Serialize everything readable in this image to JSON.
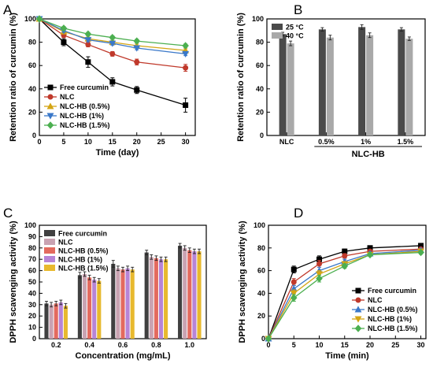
{
  "chart_data": [
    {
      "panel": "A",
      "type": "line",
      "xlabel": "Time (day)",
      "ylabel": "Retention ratio of curcumin (%)",
      "xlim": [
        0,
        32
      ],
      "ylim": [
        0,
        100
      ],
      "xticks": [
        0,
        5,
        10,
        15,
        20,
        25,
        30
      ],
      "yticks": [
        0,
        20,
        40,
        60,
        80,
        100
      ],
      "x": [
        0,
        5,
        10,
        15,
        20,
        30
      ],
      "legend_position": "bottom-left",
      "series": [
        {
          "name": "Free curcumin",
          "color": "#000000",
          "marker": "square",
          "values": [
            100,
            80,
            63,
            46,
            39,
            26
          ],
          "errors": [
            0,
            3,
            4.5,
            3.5,
            3,
            6
          ]
        },
        {
          "name": "NLC",
          "color": "#c0392b",
          "marker": "circle",
          "values": [
            100,
            86,
            78,
            70,
            63,
            58
          ],
          "errors": [
            0,
            2,
            2,
            2,
            2.5,
            3
          ]
        },
        {
          "name": "NLC-HB (0.5%)",
          "color": "#d4a514",
          "marker": "triangle-up",
          "values": [
            100,
            89,
            83,
            80,
            77,
            73
          ],
          "errors": [
            0,
            1.5,
            1.5,
            1.5,
            1.5,
            1.5
          ]
        },
        {
          "name": "NLC-HB (1%)",
          "color": "#3a78c9",
          "marker": "triangle-down",
          "values": [
            100,
            90,
            82,
            79,
            75,
            70
          ],
          "errors": [
            0,
            1.5,
            1.5,
            1.5,
            1.5,
            1.5
          ]
        },
        {
          "name": "NLC-HB (1.5%)",
          "color": "#4caf50",
          "marker": "diamond",
          "values": [
            100,
            92,
            87,
            84,
            81,
            77
          ],
          "errors": [
            0,
            1.5,
            1.5,
            1.5,
            1.5,
            1.5
          ]
        }
      ]
    },
    {
      "panel": "B",
      "type": "bar",
      "xlabel": "NLC-HB",
      "ylabel": "Retention ratio of curcumin (%)",
      "ylim": [
        0,
        100
      ],
      "yticks": [
        0,
        20,
        40,
        60,
        80,
        100
      ],
      "categories": [
        "NLC",
        "0.5%",
        "1%",
        "1.5%"
      ],
      "legend_position": "top-left",
      "series": [
        {
          "name": "25 °C",
          "color": "#4a4a4a",
          "values": [
            87,
            91,
            93,
            91
          ],
          "errors": [
            1.5,
            1.5,
            2,
            1.5
          ]
        },
        {
          "name": "40 °C",
          "color": "#a9a9a9",
          "values": [
            79,
            84,
            86,
            83
          ],
          "errors": [
            2,
            2,
            2,
            1.5
          ]
        }
      ]
    },
    {
      "panel": "C",
      "type": "bar",
      "xlabel": "Concentration (mg/mL)",
      "ylabel": "DPPH scavenging activity (%)",
      "ylim": [
        0,
        100
      ],
      "yticks": [
        0,
        10,
        20,
        30,
        40,
        50,
        60,
        70,
        80,
        90,
        100
      ],
      "categories": [
        "0.2",
        "0.4",
        "0.6",
        "0.8",
        "1.0"
      ],
      "legend_position": "top-left",
      "series": [
        {
          "name": "Free curcumin",
          "color": "#404040",
          "values": [
            31,
            56,
            66,
            76,
            82
          ],
          "errors": [
            2,
            2.5,
            3,
            2,
            2
          ]
        },
        {
          "name": "NLC",
          "color": "#c9a3b2",
          "values": [
            30,
            57,
            62,
            72,
            80
          ],
          "errors": [
            2,
            2,
            2,
            2,
            2
          ]
        },
        {
          "name": "NLC-HB (0.5%)",
          "color": "#e36a5e",
          "values": [
            31,
            54,
            61,
            71,
            78
          ],
          "errors": [
            2,
            2,
            2,
            2,
            2
          ]
        },
        {
          "name": "NLC-HB (1%)",
          "color": "#b784d6",
          "values": [
            32,
            52,
            62,
            70,
            77
          ],
          "errors": [
            2,
            2,
            2,
            2,
            2
          ]
        },
        {
          "name": "NLC-HB (1.5%)",
          "color": "#e8b92e",
          "values": [
            29,
            51,
            61,
            70,
            77
          ],
          "errors": [
            2,
            2,
            2,
            2,
            2
          ]
        }
      ],
      "extra_bar_colors_note": ""
    },
    {
      "panel": "D",
      "type": "line",
      "xlabel": "Time (min)",
      "ylabel": "DPPH scavenging activity (%)",
      "xlim": [
        0,
        31
      ],
      "ylim": [
        0,
        100
      ],
      "xticks": [
        0,
        5,
        10,
        15,
        20,
        25,
        30
      ],
      "yticks": [
        0,
        20,
        40,
        60,
        80,
        100
      ],
      "x": [
        0,
        5,
        10,
        15,
        20,
        30
      ],
      "legend_position": "bottom-right",
      "series": [
        {
          "name": "Free curcumin",
          "color": "#000000",
          "marker": "square",
          "values": [
            0,
            61,
            70,
            77,
            80,
            82
          ],
          "errors": [
            0,
            3,
            3,
            2,
            1.5,
            1.5
          ]
        },
        {
          "name": "NLC",
          "color": "#c0392b",
          "marker": "circle",
          "values": [
            0,
            50,
            66,
            73,
            77,
            79
          ],
          "errors": [
            0,
            3,
            3,
            2,
            1.5,
            1.5
          ]
        },
        {
          "name": "NLC-HB (0.5%)",
          "color": "#3a78c9",
          "marker": "triangle-up",
          "values": [
            0,
            44,
            60,
            68,
            75,
            78
          ],
          "errors": [
            0,
            3,
            3,
            2,
            1.5,
            1.5
          ]
        },
        {
          "name": "NLC-HB (1%)",
          "color": "#d4a514",
          "marker": "triangle-down",
          "values": [
            0,
            40,
            57,
            66,
            74,
            77
          ],
          "errors": [
            0,
            3,
            3,
            2,
            1.5,
            1.5
          ]
        },
        {
          "name": "NLC-HB (1.5%)",
          "color": "#4caf50",
          "marker": "diamond",
          "values": [
            0,
            36,
            53,
            64,
            74,
            76
          ],
          "errors": [
            0,
            3,
            3,
            2,
            1.5,
            1.5
          ]
        }
      ]
    }
  ]
}
